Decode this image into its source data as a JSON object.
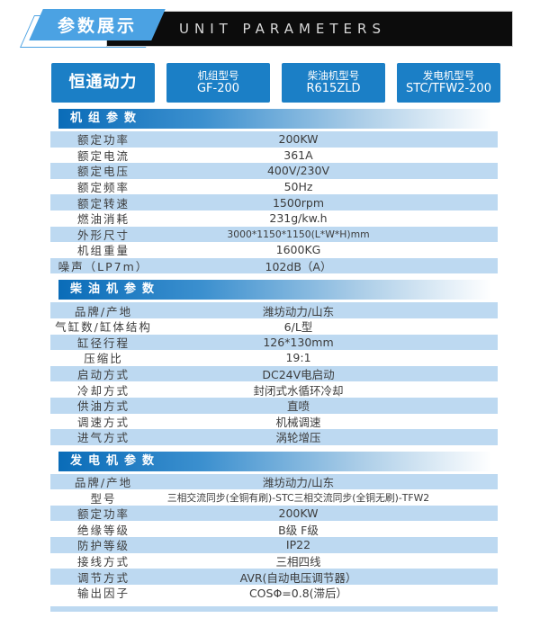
{
  "header": {
    "title": "参数展示",
    "subtitle": "UNIT PARAMETERS"
  },
  "brand": {
    "name": "恒通动力",
    "models": [
      {
        "label": "机组型号",
        "value": "GF-200"
      },
      {
        "label": "柴油机型号",
        "value": "R615ZLD"
      },
      {
        "label": "发电机型号",
        "value": "STC/TFW2-200"
      }
    ]
  },
  "sections": [
    {
      "title": "机组参数",
      "rows": [
        [
          "额定功率",
          "200KW"
        ],
        [
          "额定电流",
          "361A"
        ],
        [
          "额定电压",
          "400V/230V"
        ],
        [
          "额定频率",
          "50Hz"
        ],
        [
          "额定转速",
          "1500rpm"
        ],
        [
          "燃油消耗",
          "231g/kw.h"
        ],
        [
          "外形尺寸",
          "3000*1150*1150(L*W*H)mm"
        ],
        [
          "机组重量",
          "1600KG"
        ],
        [
          "噪声（LP7m）",
          "102dB（A）"
        ]
      ]
    },
    {
      "title": "柴油机参数",
      "rows": [
        [
          "品牌/产地",
          "潍坊动力/山东"
        ],
        [
          "气缸数/缸体结构",
          "6/L型"
        ],
        [
          "缸径行程",
          "126*130mm"
        ],
        [
          "压缩比",
          "19:1"
        ],
        [
          "启动方式",
          "DC24V电启动"
        ],
        [
          "冷却方式",
          "封闭式水循环冷却"
        ],
        [
          "供油方式",
          "直喷"
        ],
        [
          "调速方式",
          "机械调速"
        ],
        [
          "进气方式",
          "涡轮增压"
        ]
      ]
    },
    {
      "title": "发电机参数",
      "rows": [
        [
          "品牌/产地",
          "潍坊动力/山东"
        ],
        [
          "型号",
          "三相交流同步(全铜有刷)-STC三相交流同步(全铜无刷)-TFW2"
        ],
        [
          "额定功率",
          "200KW"
        ],
        [
          "绝缘等级",
          "B级 F级"
        ],
        [
          "防护等级",
          "IP22"
        ],
        [
          "接线方式",
          "三相四线"
        ],
        [
          "调节方式",
          "AVR(自动电压调节器）"
        ],
        [
          "输出因子",
          "COSΦ=0.8(滞后）"
        ]
      ]
    }
  ],
  "colors": {
    "badge_blue": "#4ba2e3",
    "brand_box_blue": "#1b7fc6",
    "section_bar_blue": "#0a6cb8",
    "row_light_blue": "#bdd9f1",
    "title_bar_black": "#0c0c0c",
    "text_dark": "#3c3c3c"
  }
}
